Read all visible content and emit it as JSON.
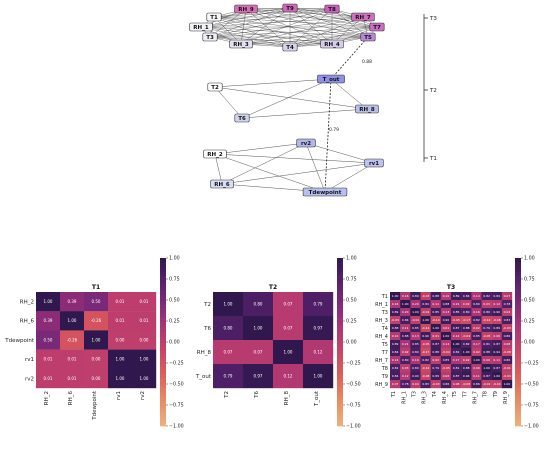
{
  "chart_data": {
    "type": "heatmap",
    "network": {
      "tiers": [
        {
          "label": "T3",
          "nodes": [
            "T1",
            "RH_1",
            "RH_9",
            "T9",
            "T8",
            "RH_7",
            "T7",
            "T3",
            "RH_3",
            "T4",
            "RH_4",
            "T5"
          ]
        },
        {
          "label": "T2",
          "nodes": [
            "T2",
            "T_out",
            "T6",
            "RH_8"
          ]
        },
        {
          "label": "T1",
          "nodes": [
            "RH_2",
            "rv2",
            "rv1",
            "RH_6",
            "Tdewpoint"
          ]
        }
      ],
      "edge_labels": [
        "0.88",
        "0.79"
      ]
    },
    "colorbar_ticks": [
      "1.00",
      "0.75",
      "0.50",
      "0.25",
      "0.00",
      "−0.25",
      "−0.50",
      "−0.75",
      "−1.00"
    ],
    "panels": [
      {
        "title": "T1",
        "labels": [
          "RH_2",
          "RH_6",
          "Tdewpoint",
          "rv1",
          "rv2"
        ],
        "values": [
          [
            1.0,
            0.39,
            0.5,
            0.01,
            0.01
          ],
          [
            0.39,
            1.0,
            -0.26,
            0.01,
            0.01
          ],
          [
            0.5,
            -0.26,
            1.0,
            -0.0,
            -0.0
          ],
          [
            0.01,
            0.01,
            -0.0,
            1.0,
            1.0
          ],
          [
            0.01,
            0.01,
            -0.0,
            1.0,
            1.0
          ]
        ]
      },
      {
        "title": "T2",
        "labels": [
          "T2",
          "T6",
          "RH_8",
          "T_out"
        ],
        "values": [
          [
            1.0,
            0.8,
            0.07,
            0.79
          ],
          [
            0.8,
            1.0,
            0.07,
            0.97
          ],
          [
            0.07,
            0.07,
            1.0,
            0.12
          ],
          [
            0.79,
            0.97,
            0.12,
            1.0
          ]
        ]
      },
      {
        "title": "T3",
        "labels": [
          "T1",
          "RH_1",
          "T3",
          "RH_3",
          "T4",
          "RH_4",
          "T5",
          "T7",
          "RH_7",
          "T8",
          "T9",
          "RH_9"
        ],
        "values": [
          [
            1.0,
            0.16,
            0.89,
            -0.03,
            0.88,
            0.1,
            0.89,
            0.84,
            0.14,
            0.82,
            0.84,
            0.07
          ],
          [
            0.16,
            1.0,
            0.2,
            0.84,
            0.11,
            0.88,
            0.21,
            0.02,
            0.8,
            0.03,
            0.12,
            0.78
          ],
          [
            0.89,
            0.2,
            1.0,
            -0.01,
            0.85,
            0.13,
            0.85,
            0.8,
            0.16,
            0.8,
            0.9,
            0.04
          ],
          [
            -0.03,
            0.84,
            -0.01,
            1.0,
            -0.14,
            0.9,
            -0.05,
            -0.17,
            0.82,
            -0.14,
            -0.08,
            0.83
          ],
          [
            0.88,
            0.11,
            0.85,
            -0.14,
            1.0,
            0.01,
            0.87,
            0.88,
            0.02,
            0.79,
            0.89,
            -0.03
          ],
          [
            0.1,
            0.88,
            0.13,
            0.9,
            0.01,
            1.0,
            0.14,
            -0.04,
            0.85,
            -0.05,
            0.06,
            0.86
          ],
          [
            0.89,
            0.21,
            0.85,
            -0.05,
            0.87,
            0.14,
            1.0,
            0.82,
            0.17,
            0.81,
            0.87,
            0.08
          ],
          [
            0.84,
            0.02,
            0.8,
            -0.17,
            0.88,
            -0.04,
            0.82,
            1.0,
            0.02,
            0.88,
            0.94,
            -0.08
          ],
          [
            0.14,
            0.8,
            0.16,
            0.82,
            0.02,
            0.85,
            0.17,
            0.02,
            1.0,
            0.09,
            0.11,
            0.86
          ],
          [
            0.82,
            0.03,
            0.8,
            -0.14,
            0.79,
            -0.05,
            0.81,
            0.88,
            0.09,
            1.0,
            0.87,
            -0.01
          ],
          [
            0.84,
            0.12,
            0.9,
            -0.08,
            0.89,
            0.06,
            0.87,
            0.94,
            0.11,
            0.87,
            1.0,
            -0.04
          ],
          [
            0.07,
            0.78,
            0.04,
            0.83,
            -0.03,
            0.86,
            0.08,
            -0.08,
            0.86,
            -0.01,
            -0.04,
            1.0
          ]
        ]
      }
    ]
  }
}
